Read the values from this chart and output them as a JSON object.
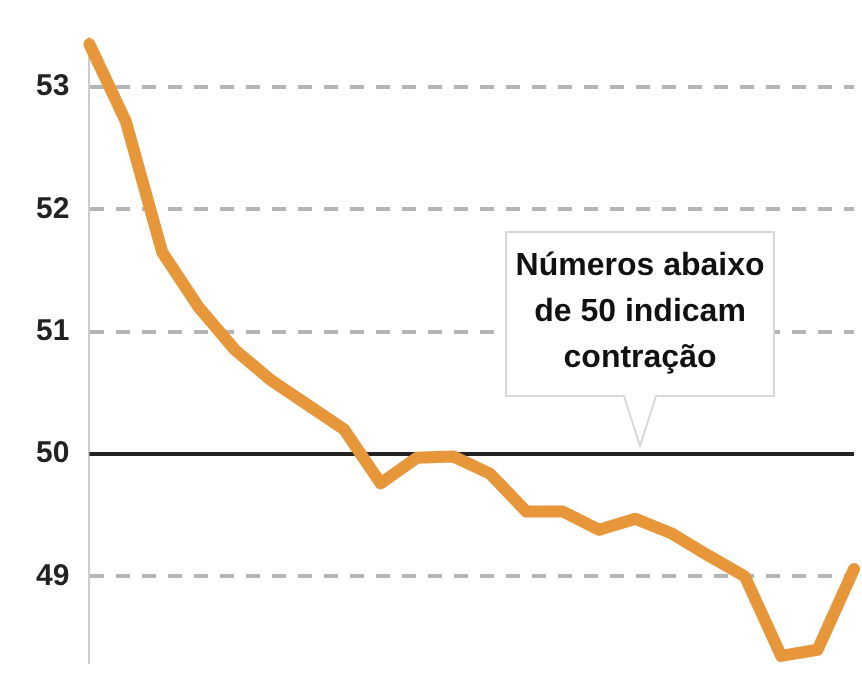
{
  "chart_data": {
    "type": "line",
    "categories": [
      null,
      null,
      null,
      null,
      null,
      null,
      null,
      null,
      null,
      null,
      null,
      null,
      null,
      null,
      null,
      null,
      null,
      null,
      null,
      null,
      null,
      null
    ],
    "series": [
      {
        "color": "#e8963a",
        "values": [
          53.35,
          52.72,
          51.65,
          51.2,
          50.85,
          50.6,
          50.4,
          50.2,
          49.76,
          49.97,
          49.98,
          49.84,
          49.53,
          49.53,
          49.38,
          49.47,
          49.35,
          49.17,
          49.0,
          48.35,
          48.4,
          49.06
        ]
      }
    ],
    "ylim": [
      48.3,
      53.4
    ],
    "yticks": [
      49,
      50,
      51,
      52,
      53
    ],
    "grid": "y",
    "legend": false,
    "marker": "none",
    "line_style": "solid",
    "ref_lines": [
      {
        "axis": "y",
        "value": 50,
        "color": "#222222",
        "line_style": "solid"
      }
    ],
    "annotations": [
      {
        "text": "Números abaixo\nde 50 indicam\ncontração",
        "y": 50
      }
    ]
  }
}
